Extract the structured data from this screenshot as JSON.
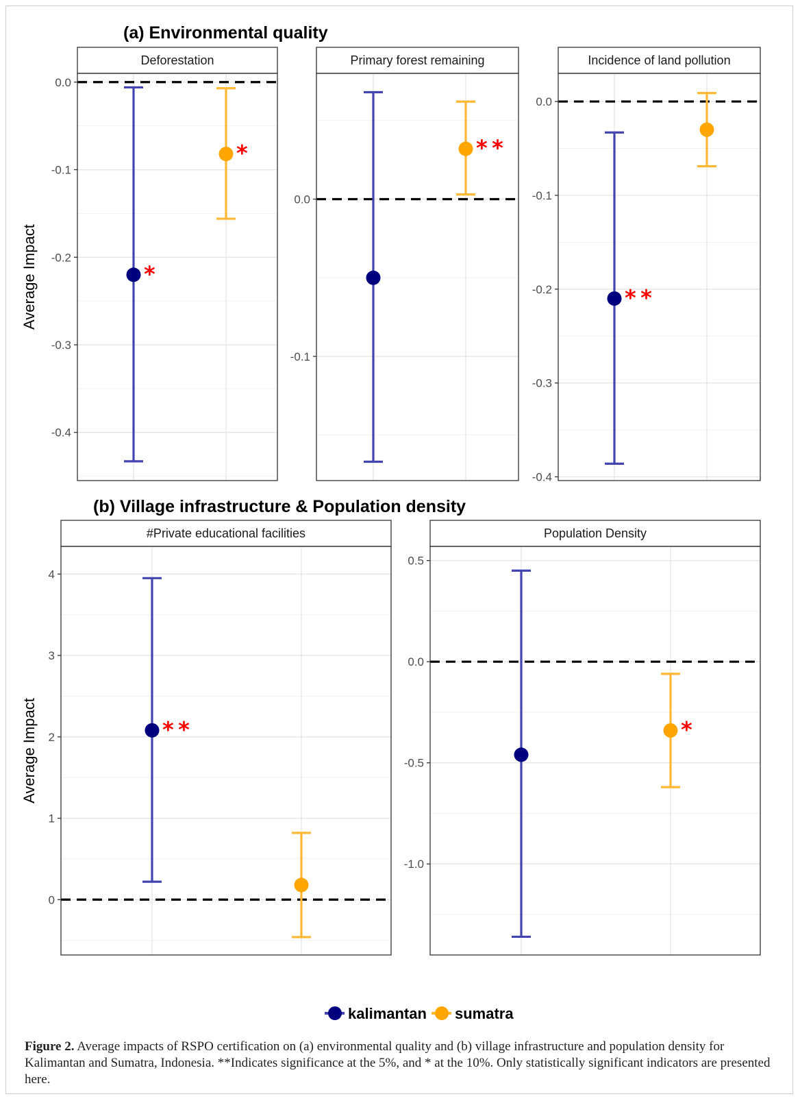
{
  "colors": {
    "kalimantan_point": "#00007f",
    "kalimantan_bar": "#4444b0",
    "sumatra_point": "#ffa500",
    "sumatra_bar": "#ffb833",
    "star": "#ff0000"
  },
  "sections": {
    "a_title": "(a) Environmental quality",
    "b_title": "(b) Village infrastructure & Population density"
  },
  "chart_data": [
    {
      "type": "scatter",
      "panel": "Deforestation",
      "section": "(a) Environmental quality",
      "ylabel": "Average Impact",
      "ylim": [
        -0.455,
        0.01
      ],
      "yticks": [
        0.0,
        -0.1,
        -0.2,
        -0.3,
        -0.4
      ],
      "ytick_labels": [
        "0.0",
        "-0.1",
        "-0.2",
        "-0.3",
        "-0.4"
      ],
      "reference_line": 0,
      "grid": true,
      "series": [
        {
          "name": "kalimantan",
          "value": -0.22,
          "lower": -0.433,
          "upper": -0.006,
          "significance": "*"
        },
        {
          "name": "sumatra",
          "value": -0.082,
          "lower": -0.156,
          "upper": -0.007,
          "significance": "*"
        }
      ]
    },
    {
      "type": "scatter",
      "panel": "Primary forest remaining",
      "section": "(a) Environmental quality",
      "ylabel": "",
      "ylim": [
        -0.179,
        0.08
      ],
      "yticks": [
        0.0,
        -0.1
      ],
      "ytick_labels": [
        "0.0",
        "-0.1"
      ],
      "reference_line": 0,
      "grid": true,
      "series": [
        {
          "name": "kalimantan",
          "value": -0.05,
          "lower": -0.167,
          "upper": 0.068,
          "significance": ""
        },
        {
          "name": "sumatra",
          "value": 0.032,
          "lower": 0.003,
          "upper": 0.062,
          "significance": "**"
        }
      ]
    },
    {
      "type": "scatter",
      "panel": "Incidence of land pollution",
      "section": "(a) Environmental quality",
      "ylabel": "",
      "ylim": [
        -0.404,
        0.03
      ],
      "yticks": [
        0.0,
        -0.1,
        -0.2,
        -0.3,
        -0.4
      ],
      "ytick_labels": [
        "0.0",
        "-0.1",
        "-0.2",
        "-0.3",
        "-0.4"
      ],
      "reference_line": 0,
      "grid": true,
      "series": [
        {
          "name": "kalimantan",
          "value": -0.21,
          "lower": -0.386,
          "upper": -0.033,
          "significance": "**"
        },
        {
          "name": "sumatra",
          "value": -0.03,
          "lower": -0.069,
          "upper": 0.009,
          "significance": ""
        }
      ]
    },
    {
      "type": "scatter",
      "panel": "#Private educational facilities",
      "section": "(b) Village infrastructure & Population density",
      "ylabel": "Average Impact",
      "ylim": [
        -0.68,
        4.34
      ],
      "yticks": [
        4,
        3,
        2,
        1,
        0
      ],
      "ytick_labels": [
        "4",
        "3",
        "2",
        "1",
        "0"
      ],
      "reference_line": 0,
      "grid": true,
      "series": [
        {
          "name": "kalimantan",
          "value": 2.08,
          "lower": 0.22,
          "upper": 3.95,
          "significance": "**"
        },
        {
          "name": "sumatra",
          "value": 0.18,
          "lower": -0.46,
          "upper": 0.82,
          "significance": ""
        }
      ]
    },
    {
      "type": "scatter",
      "panel": "Population Density",
      "section": "(b) Village infrastructure & Population density",
      "ylabel": "",
      "ylim": [
        -1.45,
        0.57
      ],
      "yticks": [
        0.5,
        0.0,
        -0.5,
        -1.0
      ],
      "ytick_labels": [
        "0.5",
        "0.0",
        "-0.5",
        "-1.0"
      ],
      "reference_line": 0,
      "grid": true,
      "series": [
        {
          "name": "kalimantan",
          "value": -0.46,
          "lower": -1.36,
          "upper": 0.45,
          "significance": ""
        },
        {
          "name": "sumatra",
          "value": -0.34,
          "lower": -0.62,
          "upper": -0.06,
          "significance": "*"
        }
      ]
    }
  ],
  "legend": {
    "items": [
      {
        "name": "kalimantan"
      },
      {
        "name": "sumatra"
      }
    ],
    "placement": "bottom"
  },
  "caption": {
    "label": "Figure 2.",
    "text": "Average impacts of RSPO certification on (a) environmental quality and (b) village infrastructure and population density for Kalimantan and Sumatra, Indonesia. **Indicates significance at the 5%, and * at the 10%. Only statistically significant indicators are presented here."
  }
}
